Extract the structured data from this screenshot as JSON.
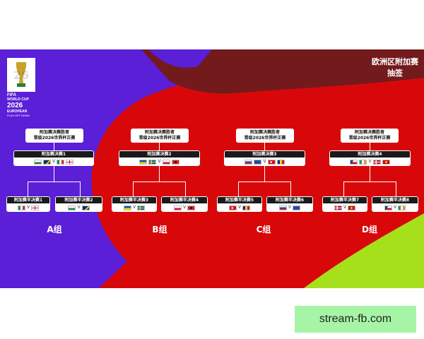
{
  "header": {
    "title_line1": "欧洲区附加赛",
    "title_line2": "抽签"
  },
  "logo": {
    "org": "FIFA",
    "line1": "WORLD CUP",
    "year": "2026",
    "line2": "EUROPEAN",
    "line3": "PLAY-OFF DRAW"
  },
  "colors": {
    "purple": "#5a1fd6",
    "red": "#d8080a",
    "dark_red": "#731a1c",
    "lime": "#a6e01b"
  },
  "vs": "V",
  "regions": [
    {
      "group": "A组",
      "qualifier": [
        "附加赛决赛胜者",
        "晋级2026世界杯正赛"
      ],
      "final": {
        "label": "附加赛决赛1",
        "flags": [
          [
            "wales",
            "bosnia"
          ],
          [
            "italy",
            "northern-ireland"
          ]
        ]
      },
      "semis": [
        {
          "label": "附加赛半决赛1",
          "flags": [
            [
              "italy"
            ],
            [
              "northern-ireland"
            ]
          ]
        },
        {
          "label": "附加赛半决赛2",
          "flags": [
            [
              "wales"
            ],
            [
              "bosnia"
            ]
          ]
        }
      ]
    },
    {
      "group": "B组",
      "qualifier": [
        "附加赛决赛胜者",
        "晋级2026世界杯正赛"
      ],
      "final": {
        "label": "附加赛决赛2",
        "flags": [
          [
            "ukraine",
            "sweden"
          ],
          [
            "poland",
            "albania"
          ]
        ]
      },
      "semis": [
        {
          "label": "附加赛半决赛3",
          "flags": [
            [
              "ukraine"
            ],
            [
              "sweden"
            ]
          ]
        },
        {
          "label": "附加赛半决赛4",
          "flags": [
            [
              "poland"
            ],
            [
              "albania"
            ]
          ]
        }
      ]
    },
    {
      "group": "C组",
      "qualifier": [
        "附加赛决赛胜者",
        "晋级2026世界杯正赛"
      ],
      "final": {
        "label": "附加赛决赛3",
        "flags": [
          [
            "slovakia",
            "kosovo"
          ],
          [
            "turkey",
            "romania"
          ]
        ]
      },
      "semis": [
        {
          "label": "附加赛半决赛5",
          "flags": [
            [
              "turkey"
            ],
            [
              "romania"
            ]
          ]
        },
        {
          "label": "附加赛半决赛6",
          "flags": [
            [
              "slovakia"
            ],
            [
              "kosovo"
            ]
          ]
        }
      ]
    },
    {
      "group": "D组",
      "qualifier": [
        "附加赛决赛胜者",
        "晋级2026世界杯正赛"
      ],
      "final": {
        "label": "附加赛决赛4",
        "flags": [
          [
            "czechia",
            "ireland"
          ],
          [
            "denmark",
            "north-macedonia"
          ]
        ]
      },
      "semis": [
        {
          "label": "附加赛半决赛7",
          "flags": [
            [
              "denmark"
            ],
            [
              "north-macedonia"
            ]
          ]
        },
        {
          "label": "附加赛半决赛8",
          "flags": [
            [
              "czechia"
            ],
            [
              "ireland"
            ]
          ]
        }
      ]
    }
  ],
  "watermark": "stream-fb.com"
}
